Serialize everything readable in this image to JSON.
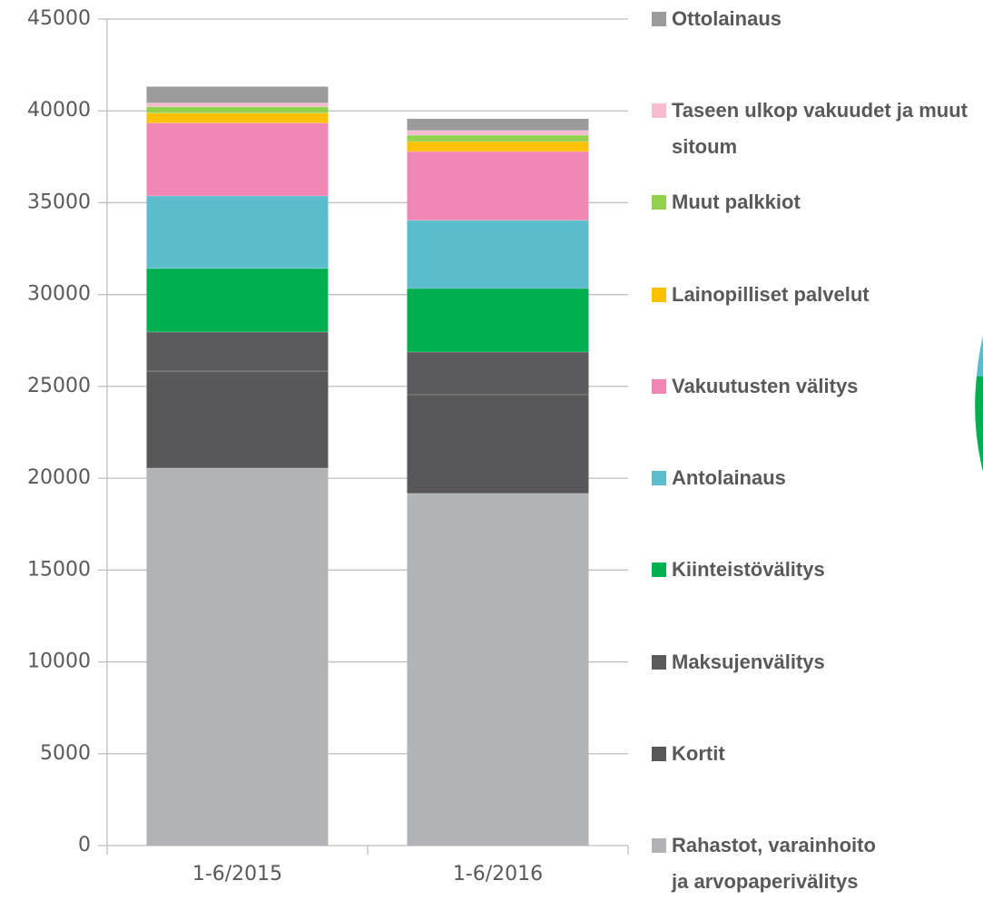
{
  "chart_data": {
    "type": "stacked-bar",
    "categories": [
      "1-6/2015",
      "1-6/2016"
    ],
    "series": [
      {
        "name": "Rahastot, varainhoito ja arvopaperivälitys",
        "color": "#b1b3b6",
        "values": [
          20550,
          19170
        ]
      },
      {
        "name": "Kortit",
        "color": "#58585a",
        "values": [
          5280,
          5380
        ]
      },
      {
        "name": "Maksujenvälitys",
        "color": "#5b5b5d",
        "values": [
          2130,
          2320
        ]
      },
      {
        "name": "Kiinteistövälitys",
        "color": "#00b050",
        "values": [
          3460,
          3460
        ]
      },
      {
        "name": "Antolainaus",
        "color": "#5bbccc",
        "values": [
          3950,
          3710
        ]
      },
      {
        "name": "Vakuutusten välitys",
        "color": "#f086b3",
        "values": [
          3970,
          3750
        ]
      },
      {
        "name": "Lainopilliset palvelut",
        "color": "#ffc000",
        "values": [
          545,
          540
        ]
      },
      {
        "name": "Muut palkkiot",
        "color": "#92d050",
        "values": [
          345,
          350
        ]
      },
      {
        "name": "Taseen ulkop vakuudet ja muut sitoum",
        "color": "#f8bbd0",
        "values": [
          200,
          250
        ]
      },
      {
        "name": "Ottolainaus",
        "color": "#9b9b9b",
        "values": [
          890,
          640
        ]
      }
    ],
    "ylim": [
      0,
      45000
    ],
    "yticks": [
      0,
      5000,
      10000,
      15000,
      20000,
      25000,
      30000,
      35000,
      40000,
      45000
    ],
    "grid": true
  }
}
